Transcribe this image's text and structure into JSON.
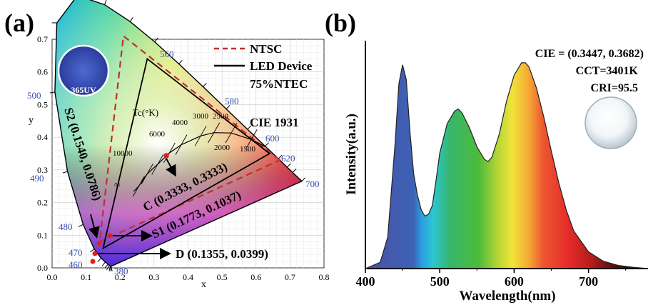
{
  "panel_a": {
    "label": "(a)",
    "inset_label": "365UV",
    "diagram_title": "CIE 1931",
    "legend": {
      "ntsc": "NTSC",
      "device": "LED Device",
      "ntec": "75%NTEC"
    },
    "planckian_label": "Tc(°K)",
    "cct_labels": [
      "10000",
      "6000",
      "4000",
      "3000",
      "2500",
      "2000",
      "1500",
      "∞"
    ],
    "wavelength_labels": [
      "380",
      "460",
      "470",
      "480",
      "490",
      "500",
      "560",
      "580",
      "600",
      "620",
      "700"
    ],
    "points": {
      "c": "C (0.3333, 0.3333)",
      "s1": "S1 (0.1773, 0.1037)",
      "s2": "S2 (0.1540, 0.0786)",
      "d": "D (0.1355, 0.0399)"
    }
  },
  "panel_b": {
    "label": "(b)",
    "cie": "CIE = (0.3447, 0.3682)",
    "cct": "CCT=3401K",
    "cri": "CRI=95.5"
  },
  "chart_data": [
    {
      "type": "scatter",
      "title": "CIE 1931",
      "xlabel": "x",
      "ylabel": "y",
      "xlim": [
        0.0,
        0.8
      ],
      "ylim": [
        0.0,
        0.7
      ],
      "xticks": [
        "0.0",
        "0.1",
        "0.2",
        "0.3",
        "0.4",
        "0.5",
        "0.6",
        "0.7",
        "0.8"
      ],
      "yticks": [
        "0.0",
        "0.1",
        "0.2",
        "0.3",
        "0.4",
        "0.5",
        "0.6",
        "0.7"
      ],
      "grid": true,
      "legend_position": "top-right",
      "series": [
        {
          "name": "NTSC",
          "x": [
            0.67,
            0.21,
            0.14
          ],
          "y": [
            0.33,
            0.71,
            0.08
          ]
        },
        {
          "name": "LED Device",
          "x": [
            0.64,
            0.28,
            0.15
          ],
          "y": [
            0.35,
            0.64,
            0.06
          ]
        }
      ],
      "points": [
        {
          "label": "C",
          "x": 0.3333,
          "y": 0.3333
        },
        {
          "label": "S1",
          "x": 0.1773,
          "y": 0.1037
        },
        {
          "label": "S2",
          "x": 0.154,
          "y": 0.0786
        },
        {
          "label": "D",
          "x": 0.1355,
          "y": 0.0399
        }
      ]
    },
    {
      "type": "area",
      "xlabel": "Wavelength(nm)",
      "ylabel": "Intensity(a.u.)",
      "xlim": [
        400,
        780
      ],
      "xticks": [
        "400",
        "500",
        "600",
        "700"
      ],
      "series": [
        {
          "x": [
            400,
            420,
            430,
            440,
            445,
            450,
            455,
            460,
            465,
            470,
            475,
            480,
            485,
            490,
            495,
            500,
            510,
            520,
            525,
            530,
            540,
            550,
            560,
            565,
            570,
            580,
            590,
            600,
            610,
            615,
            620,
            630,
            640,
            650,
            660,
            670,
            680,
            700,
            720,
            740,
            760,
            780
          ],
          "y": [
            0.0,
            0.03,
            0.15,
            0.6,
            0.88,
            0.97,
            0.9,
            0.65,
            0.45,
            0.35,
            0.28,
            0.25,
            0.26,
            0.3,
            0.42,
            0.55,
            0.69,
            0.75,
            0.76,
            0.74,
            0.67,
            0.58,
            0.52,
            0.51,
            0.53,
            0.64,
            0.8,
            0.92,
            0.98,
            0.98,
            0.96,
            0.86,
            0.72,
            0.56,
            0.41,
            0.28,
            0.18,
            0.08,
            0.035,
            0.015,
            0.006,
            0.0
          ]
        }
      ]
    }
  ]
}
